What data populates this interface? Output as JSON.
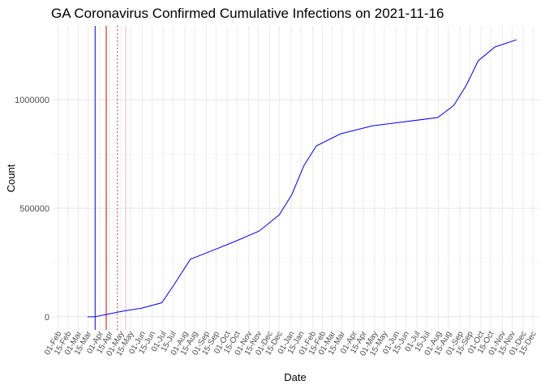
{
  "chart_data": {
    "type": "line",
    "title": "GA Coronavirus Confirmed Cumulative Infections on 2021-11-16",
    "x_label": "Date",
    "y_label": "Count",
    "grid": true,
    "xlim": [
      -8,
      692
    ],
    "ylim": [
      -60000,
      1340000
    ],
    "yticks": [
      0,
      500000,
      1000000
    ],
    "xticks": [
      {
        "value": 0,
        "label": "01-Feb"
      },
      {
        "value": 14,
        "label": "15-Feb"
      },
      {
        "value": 29,
        "label": "01-Mar"
      },
      {
        "value": 43,
        "label": "15-Mar"
      },
      {
        "value": 60,
        "label": "01-Apr"
      },
      {
        "value": 74,
        "label": "15-Apr"
      },
      {
        "value": 90,
        "label": "01-May"
      },
      {
        "value": 104,
        "label": "15-May"
      },
      {
        "value": 121,
        "label": "01-Jun"
      },
      {
        "value": 135,
        "label": "15-Jun"
      },
      {
        "value": 151,
        "label": "01-Jul"
      },
      {
        "value": 165,
        "label": "15-Jul"
      },
      {
        "value": 182,
        "label": "01-Aug"
      },
      {
        "value": 196,
        "label": "15-Aug"
      },
      {
        "value": 213,
        "label": "01-Sep"
      },
      {
        "value": 227,
        "label": "15-Sep"
      },
      {
        "value": 243,
        "label": "01-Oct"
      },
      {
        "value": 257,
        "label": "15-Oct"
      },
      {
        "value": 274,
        "label": "01-Nov"
      },
      {
        "value": 288,
        "label": "15-Nov"
      },
      {
        "value": 304,
        "label": "01-Dec"
      },
      {
        "value": 318,
        "label": "15-Dec"
      },
      {
        "value": 335,
        "label": "01-Jan"
      },
      {
        "value": 349,
        "label": "15-Jan"
      },
      {
        "value": 366,
        "label": "01-Feb"
      },
      {
        "value": 380,
        "label": "15-Feb"
      },
      {
        "value": 394,
        "label": "01-Mar"
      },
      {
        "value": 408,
        "label": "15-Mar"
      },
      {
        "value": 425,
        "label": "01-Apr"
      },
      {
        "value": 439,
        "label": "15-Apr"
      },
      {
        "value": 455,
        "label": "01-May"
      },
      {
        "value": 469,
        "label": "15-May"
      },
      {
        "value": 486,
        "label": "01-Jun"
      },
      {
        "value": 500,
        "label": "15-Jun"
      },
      {
        "value": 516,
        "label": "01-Jul"
      },
      {
        "value": 530,
        "label": "15-Jul"
      },
      {
        "value": 547,
        "label": "01-Aug"
      },
      {
        "value": 561,
        "label": "15-Aug"
      },
      {
        "value": 578,
        "label": "01-Sep"
      },
      {
        "value": 592,
        "label": "15-Sep"
      },
      {
        "value": 608,
        "label": "01-Oct"
      },
      {
        "value": 622,
        "label": "15-Oct"
      },
      {
        "value": 639,
        "label": "01-Nov"
      },
      {
        "value": 653,
        "label": "15-Nov"
      },
      {
        "value": 669,
        "label": "01-Dec"
      },
      {
        "value": 683,
        "label": "15-Dec"
      }
    ],
    "x": [
      42,
      52,
      68,
      91,
      120,
      149,
      167,
      190,
      219,
      254,
      289,
      318,
      336,
      353,
      371,
      406,
      452,
      499,
      546,
      569,
      587,
      604,
      628,
      659
    ],
    "series": [
      {
        "color": "#0000ff",
        "values": [
          0,
          0,
          10000,
          25000,
          40000,
          65000,
          150000,
          265000,
          302000,
          347000,
          395000,
          470000,
          563000,
          694000,
          787000,
          843000,
          880000,
          899000,
          918000,
          974000,
          1067000,
          1179000,
          1243000,
          1276000
        ]
      }
    ],
    "vlines": [
      {
        "x": 53,
        "color": "#0000ff",
        "dash": "solid"
      },
      {
        "x": 69,
        "color": "#cc0000",
        "dash": "solid"
      },
      {
        "x": 85,
        "color": "#cc0000",
        "dash": "dotted"
      },
      {
        "x": 97,
        "color": "#e8b4c8",
        "dash": "solid"
      }
    ]
  }
}
